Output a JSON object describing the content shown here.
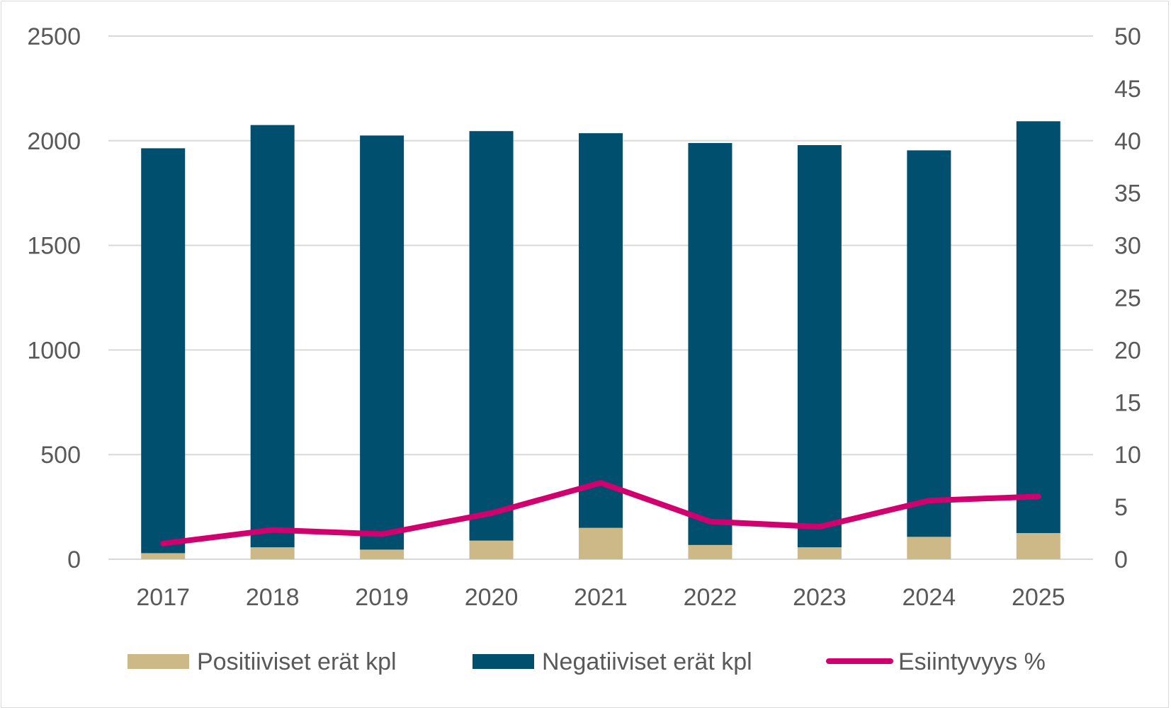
{
  "chart_data": {
    "type": "bar",
    "stacked": true,
    "categories": [
      "2017",
      "2018",
      "2019",
      "2020",
      "2021",
      "2022",
      "2023",
      "2024",
      "2025"
    ],
    "series": [
      {
        "name": "Positiiviset erät kpl",
        "type": "bar",
        "axis": "left",
        "color": "#CDB888",
        "values": [
          29,
          57,
          46,
          89,
          150,
          68,
          57,
          107,
          125
        ]
      },
      {
        "name": "Negatiiviset erät kpl",
        "type": "bar",
        "axis": "left",
        "color": "#004F6E",
        "values": [
          1935,
          2018,
          1979,
          1957,
          1886,
          1921,
          1922,
          1847,
          1968
        ]
      },
      {
        "name": "Esiintyvyys %",
        "type": "line",
        "axis": "right",
        "color": "#D0006F",
        "values": [
          1.5,
          2.8,
          2.4,
          4.4,
          7.3,
          3.6,
          3.1,
          5.6,
          6.0
        ]
      }
    ],
    "y_left": {
      "min": 0,
      "max": 2500,
      "ticks": [
        "0",
        "500",
        "1000",
        "1500",
        "2000",
        "2500"
      ]
    },
    "y_right": {
      "min": 0,
      "max": 50,
      "ticks": [
        "0",
        "5",
        "10",
        "15",
        "20",
        "25",
        "30",
        "35",
        "40",
        "45",
        "50"
      ]
    },
    "grid": true,
    "legend_position": "bottom"
  }
}
